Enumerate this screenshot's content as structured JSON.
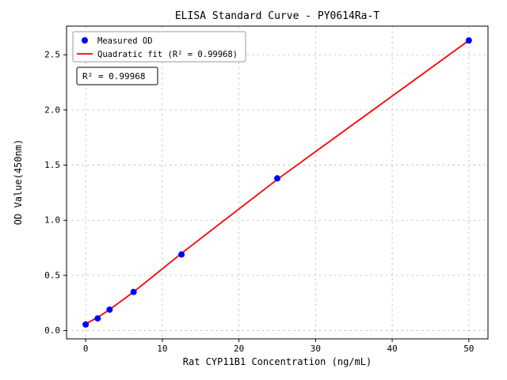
{
  "annotation": {
    "text": "R² = 0.99968"
  },
  "chart_data": {
    "type": "scatter",
    "title": "ELISA Standard Curve - PY0614Ra-T",
    "xlabel": "Rat CYP11B1 Concentration (ng/mL)",
    "ylabel": "OD Value(450nm)",
    "xlim": [
      -2.5,
      52.5
    ],
    "ylim": [
      -0.075,
      2.76
    ],
    "xticks": [
      0,
      10,
      20,
      30,
      40,
      50
    ],
    "yticks": [
      0.0,
      0.5,
      1.0,
      1.5,
      2.0,
      2.5
    ],
    "grid": true,
    "legend_position": "upper left",
    "r_squared": 0.99968,
    "series": [
      {
        "name": "Measured OD",
        "type": "scatter",
        "color": "#0000ff",
        "x": [
          0,
          1.56,
          3.12,
          6.25,
          12.5,
          25,
          50
        ],
        "y": [
          0.055,
          0.11,
          0.19,
          0.35,
          0.69,
          1.38,
          2.63
        ]
      },
      {
        "name": "Quadratic fit (R² = 0.99968)",
        "type": "line",
        "color": "#ff0000",
        "x": [
          0,
          1.56,
          3.12,
          6.25,
          12.5,
          25,
          37.5,
          50
        ],
        "y": [
          0.06,
          0.12,
          0.19,
          0.35,
          0.7,
          1.37,
          2.0,
          2.63
        ]
      }
    ]
  }
}
